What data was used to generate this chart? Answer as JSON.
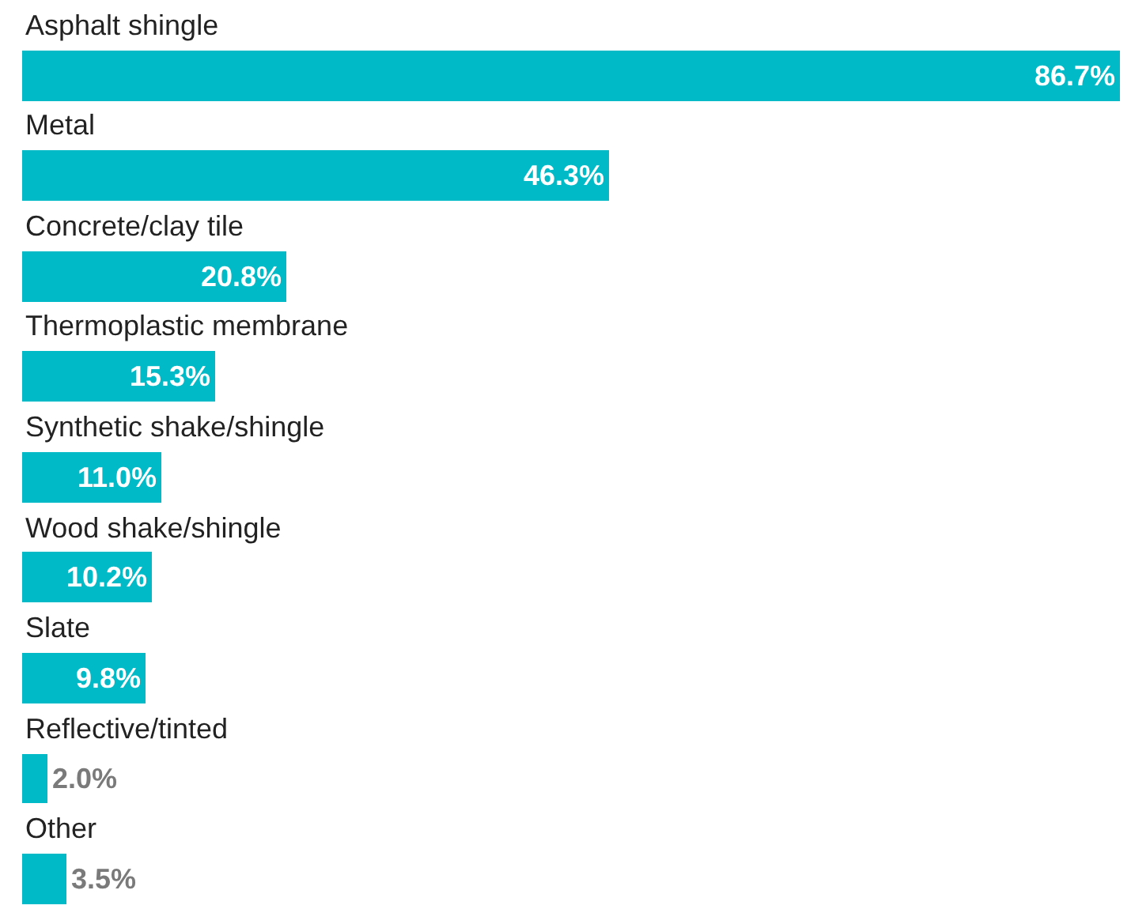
{
  "chart_data": {
    "type": "bar",
    "orientation": "horizontal",
    "categories": [
      "Asphalt shingle",
      "Metal",
      "Concrete/clay tile",
      "Thermoplastic membrane",
      "Synthetic shake/shingle",
      "Wood shake/shingle",
      "Slate",
      "Reflective/tinted",
      "Other"
    ],
    "values": [
      86.7,
      46.3,
      20.8,
      15.3,
      11.0,
      10.2,
      9.8,
      2.0,
      3.5
    ],
    "value_labels": [
      "86.7%",
      "46.3%",
      "20.8%",
      "15.3%",
      "11.0%",
      "10.2%",
      "9.8%",
      "2.0%",
      "3.5%"
    ],
    "color": "#00bbc7",
    "legend": false
  }
}
